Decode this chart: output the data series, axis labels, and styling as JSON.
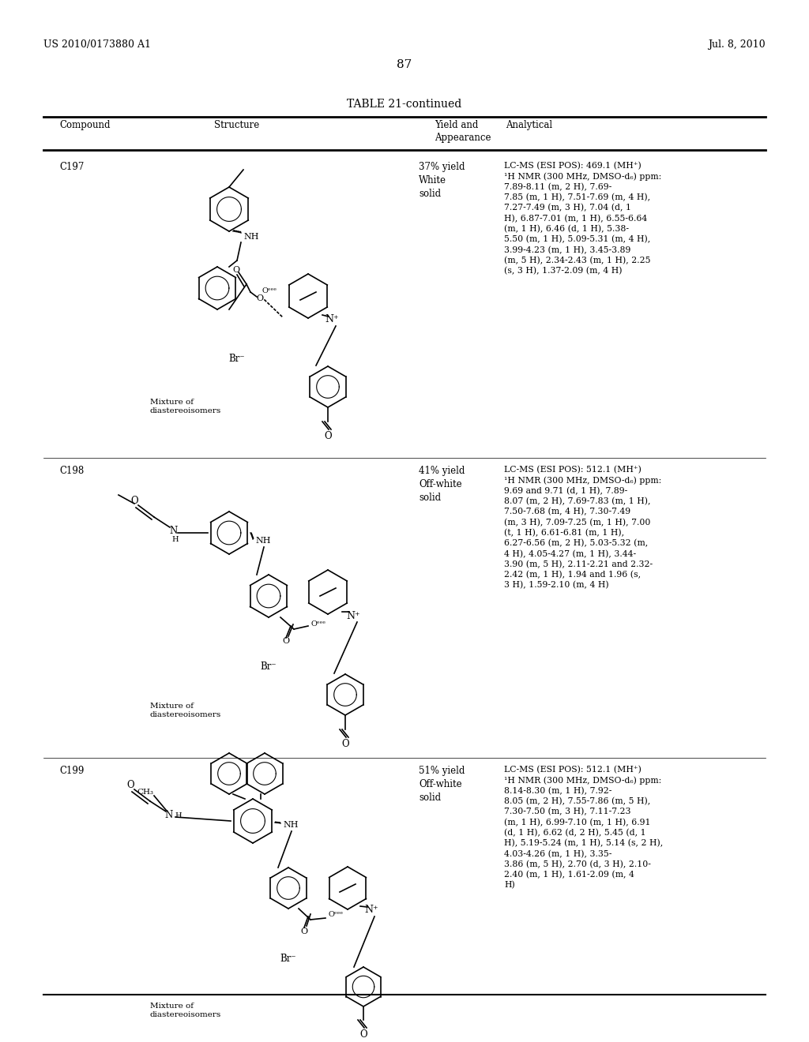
{
  "bg_color": "#ffffff",
  "header_left": "US 2010/0173880 A1",
  "header_right": "Jul. 8, 2010",
  "page_number": "87",
  "table_title": "TABLE 21-continued",
  "col_headers": [
    "Compound",
    "Structure",
    "Yield and\nAppearance",
    "Analytical"
  ],
  "compounds": [
    {
      "id": "C197",
      "yield_appearance": "37% yield\nWhite\nsolid",
      "analytical": "LC-MS (ESI POS): 469.1 (MH⁺)\n¹H NMR (300 MHz, DMSO-d₆) ppm:\n7.89-8.11 (m, 2 H), 7.69-\n7.85 (m, 1 H), 7.51-7.69 (m, 4 H),\n7.27-7.49 (m, 3 H), 7.04 (d, 1\nH), 6.87-7.01 (m, 1 H), 6.55-6.64\n(m, 1 H), 6.46 (d, 1 H), 5.38-\n5.50 (m, 1 H), 5.09-5.31 (m, 4 H),\n3.99-4.23 (m, 1 H), 3.45-3.89\n(m, 5 H), 2.34-2.43 (m, 1 H), 2.25\n(s, 3 H), 1.37-2.09 (m, 4 H)",
      "note": "Mixture of\ndiastereoisomers"
    },
    {
      "id": "C198",
      "yield_appearance": "41% yield\nOff-white\nsolid",
      "analytical": "LC-MS (ESI POS): 512.1 (MH⁺)\n¹H NMR (300 MHz, DMSO-d₆) ppm:\n9.69 and 9.71 (d, 1 H), 7.89-\n8.07 (m, 2 H), 7.69-7.83 (m, 1 H),\n7.50-7.68 (m, 4 H), 7.30-7.49\n(m, 3 H), 7.09-7.25 (m, 1 H), 7.00\n(t, 1 H), 6.61-6.81 (m, 1 H),\n6.27-6.56 (m, 2 H), 5.03-5.32 (m,\n4 H), 4.05-4.27 (m, 1 H), 3.44-\n3.90 (m, 5 H), 2.11-2.21 and 2.32-\n2.42 (m, 1 H), 1.94 and 1.96 (s,\n3 H), 1.59-2.10 (m, 4 H)",
      "note": "Mixture of\ndiastereoisomers"
    },
    {
      "id": "C199",
      "yield_appearance": "51% yield\nOff-white\nsolid",
      "analytical": "LC-MS (ESI POS): 512.1 (MH⁺)\n¹H NMR (300 MHz, DMSO-d₆) ppm:\n8.14-8.30 (m, 1 H), 7.92-\n8.05 (m, 2 H), 7.55-7.86 (m, 5 H),\n7.30-7.50 (m, 3 H), 7.11-7.23\n(m, 1 H), 6.99-7.10 (m, 1 H), 6.91\n(d, 1 H), 6.62 (d, 2 H), 5.45 (d, 1\nH), 5.19-5.24 (m, 1 H), 5.14 (s, 2 H),\n4.03-4.26 (m, 1 H), 3.35-\n3.86 (m, 5 H), 2.70 (d, 3 H), 2.10-\n2.40 (m, 1 H), 1.61-2.09 (m, 4\nH)",
      "note": "Mixture of\ndiastereoisomers"
    }
  ]
}
